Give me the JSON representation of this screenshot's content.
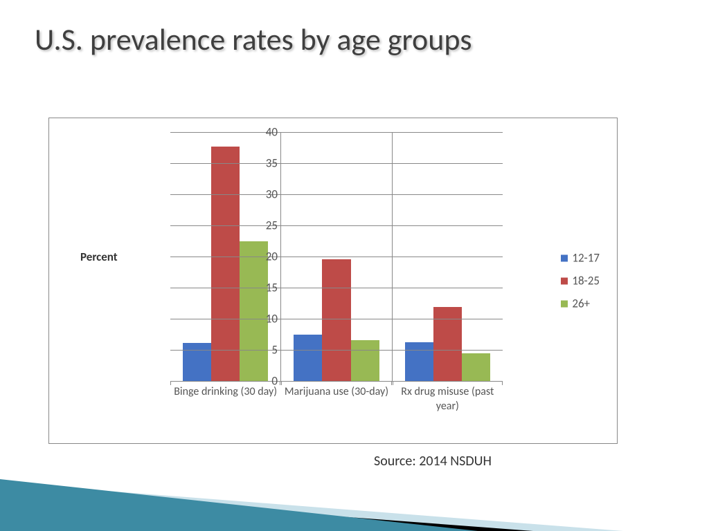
{
  "title": "U.S. prevalence rates by age groups",
  "source": "Source: 2014 NSDUH",
  "chart": {
    "type": "bar",
    "y_axis_title": "Percent",
    "ylim": [
      0,
      40
    ],
    "ytick_step": 5,
    "yticks": [
      0,
      5,
      10,
      15,
      20,
      25,
      30,
      35,
      40
    ],
    "categories": [
      {
        "label": "Binge drinking (30 day)",
        "values": [
          6.1,
          37.7,
          22.5
        ]
      },
      {
        "label": "Marijuana use (30-day)",
        "values": [
          7.4,
          19.6,
          6.6
        ]
      },
      {
        "label": "Rx drug misuse (past year)",
        "values": [
          6.2,
          11.9,
          4.5
        ]
      }
    ],
    "series": [
      {
        "name": "12-17",
        "color": "#4472c4"
      },
      {
        "name": "18-25",
        "color": "#be4b48"
      },
      {
        "name": "26+",
        "color": "#98b954"
      }
    ],
    "grid_color": "#888888",
    "background_color": "#ffffff",
    "tick_fontsize": 17,
    "axis_title_fontsize": 17,
    "title_fontsize": 44,
    "bar_gap": 0
  },
  "decor": {
    "wedge_dark": "#0d2a33",
    "wedge_teal": "#3d8ba3",
    "wedge_light": "#c9e1ea",
    "wedge_black": "#000000"
  }
}
